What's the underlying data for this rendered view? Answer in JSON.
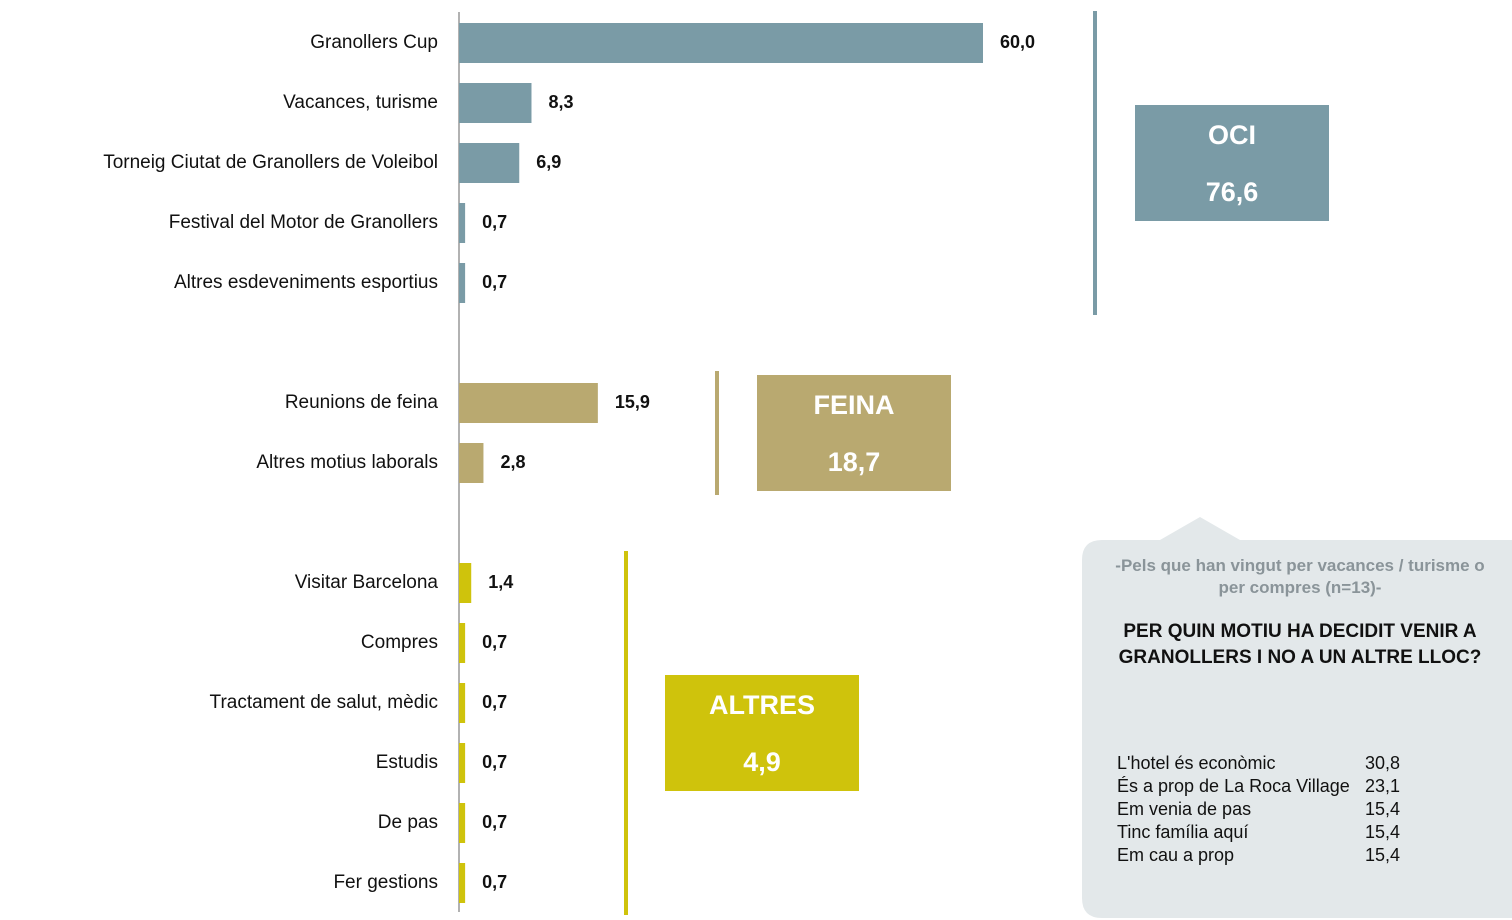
{
  "chart_data": {
    "type": "bar",
    "xlim": [
      0,
      60
    ],
    "groups": [
      {
        "name": "OCI",
        "total": 76.6,
        "total_label": "76,6",
        "color": "#7a9ba6",
        "categories": [
          "Granollers Cup",
          "Vacances, turisme",
          "Torneig Ciutat de Granollers de Voleibol",
          "Festival del Motor de Granollers",
          "Altres esdeveniments esportius"
        ],
        "values": [
          60.0,
          8.3,
          6.9,
          0.7,
          0.7
        ],
        "value_labels": [
          "60,0",
          "8,3",
          "6,9",
          "0,7",
          "0,7"
        ]
      },
      {
        "name": "FEINA",
        "total": 18.7,
        "total_label": "18,7",
        "color": "#b9a970",
        "categories": [
          "Reunions de feina",
          "Altres motius laborals"
        ],
        "values": [
          15.9,
          2.8
        ],
        "value_labels": [
          "15,9",
          "2,8"
        ]
      },
      {
        "name": "ALTRES",
        "total": 4.9,
        "total_label": "4,9",
        "color": "#cfc30c",
        "categories": [
          "Visitar Barcelona",
          "Compres",
          "Tractament de salut, mèdic",
          "Estudis",
          "De pas",
          "Fer gestions"
        ],
        "values": [
          1.4,
          0.7,
          0.7,
          0.7,
          0.7,
          0.7
        ],
        "value_labels": [
          "1,4",
          "0,7",
          "0,7",
          "0,7",
          "0,7",
          "0,7"
        ]
      }
    ]
  },
  "callout": {
    "note": "-Pels que han vingut per vacances / turisme o per compres (n=13)-",
    "question": "PER QUIN MOTIU HA DECIDIT VENIR A GRANOLLERS I NO A UN ALTRE LLOC?",
    "rows": [
      {
        "label": "L'hotel és econòmic",
        "value": 30.8,
        "value_label": "30,8"
      },
      {
        "label": "És a prop de La Roca Village",
        "value": 23.1,
        "value_label": "23,1"
      },
      {
        "label": "Em venia de pas",
        "value": 15.4,
        "value_label": "15,4"
      },
      {
        "label": "Tinc família aquí",
        "value": 15.4,
        "value_label": "15,4"
      },
      {
        "label": "Em cau a prop",
        "value": 15.4,
        "value_label": "15,4"
      }
    ]
  }
}
